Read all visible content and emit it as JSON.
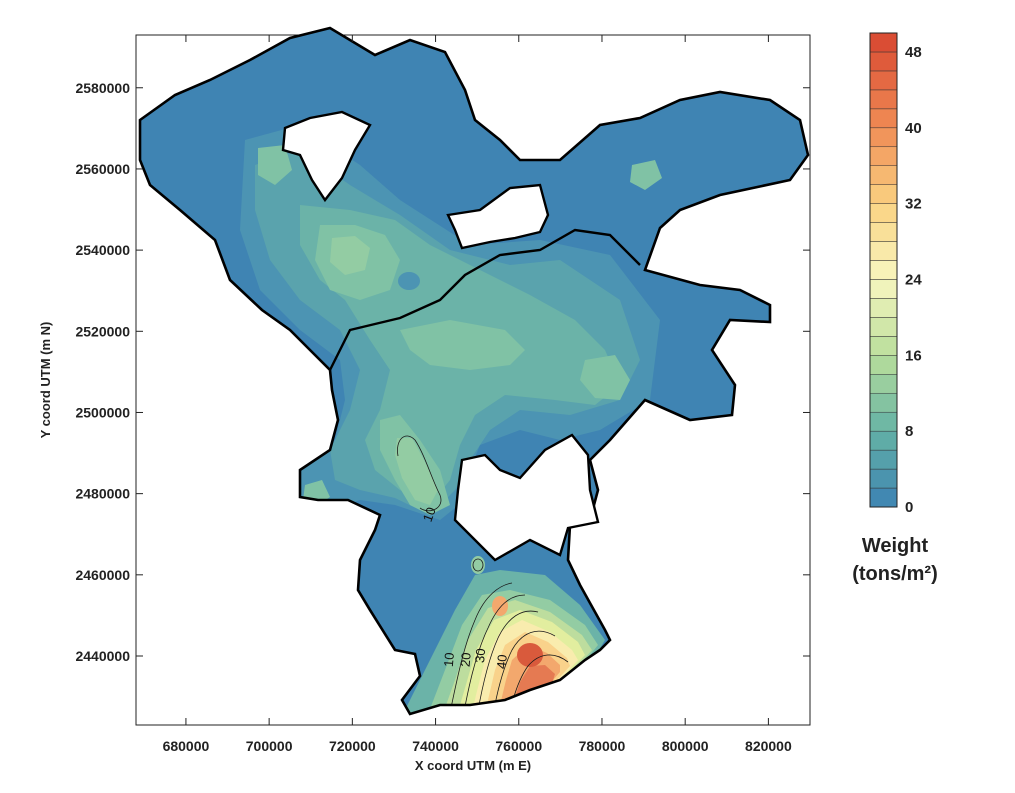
{
  "chart_data": {
    "type": "heatmap",
    "subtype": "filled contour map",
    "xlabel": "X coord UTM (m E)",
    "ylabel": "Y coord UTM (m N)",
    "xlim": [
      668000,
      830000
    ],
    "ylim": [
      2423000,
      2593000
    ],
    "x_ticks": [
      680000,
      700000,
      720000,
      740000,
      760000,
      780000,
      800000,
      820000
    ],
    "y_ticks": [
      2440000,
      2460000,
      2480000,
      2500000,
      2520000,
      2540000,
      2560000,
      2580000
    ],
    "x_tick_labels": [
      "680000",
      "700000",
      "720000",
      "740000",
      "760000",
      "780000",
      "800000",
      "820000"
    ],
    "y_tick_labels": [
      "2440000",
      "2460000",
      "2480000",
      "2500000",
      "2520000",
      "2540000",
      "2560000",
      "2580000"
    ],
    "grid": false,
    "legend": {
      "title_line1": "Weight",
      "title_line2": "(tons/m²)",
      "placement": "right",
      "range": [
        0,
        50
      ],
      "step": 2,
      "tick_values": [
        0,
        8,
        16,
        24,
        32,
        40,
        48
      ],
      "tick_labels": [
        "0",
        "8",
        "16",
        "24",
        "32",
        "40",
        "48"
      ]
    },
    "contour_labels": [
      {
        "text": "10",
        "x": 739500,
        "y": 2474500,
        "angle": -70
      },
      {
        "text": "10",
        "x": 744300,
        "y": 2439000,
        "angle": -85
      },
      {
        "text": "20",
        "x": 748300,
        "y": 2439000,
        "angle": -85
      },
      {
        "text": "30",
        "x": 751800,
        "y": 2440000,
        "angle": -85
      },
      {
        "text": "40",
        "x": 757000,
        "y": 2438500,
        "angle": -85
      }
    ]
  },
  "colors": {
    "colorbar_low": "#3c82b4",
    "colorbar_mid": "#f7f5bd",
    "colorbar_high": "#d74630",
    "outline": "#000000",
    "background": "#ffffff"
  }
}
